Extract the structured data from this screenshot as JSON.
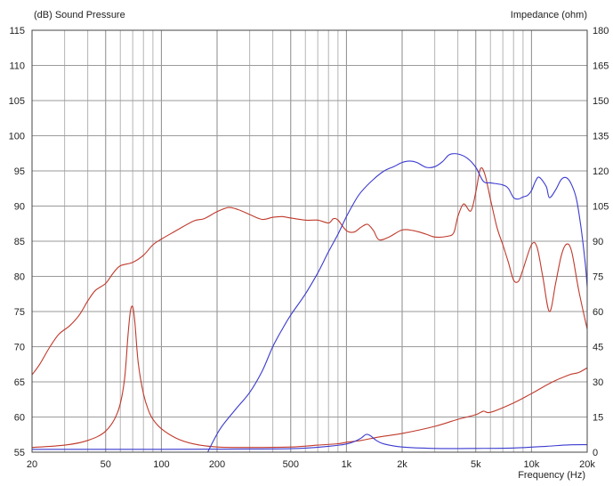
{
  "chart_data": {
    "type": "line",
    "left_axis": {
      "label": "(dB)  Sound Pressure",
      "min": 55,
      "max": 115,
      "ticks": [
        55,
        60,
        65,
        70,
        75,
        80,
        85,
        90,
        95,
        100,
        105,
        110,
        115
      ]
    },
    "right_axis": {
      "label": "Impedance  (ohm)",
      "min": 0,
      "max": 180,
      "ticks": [
        0,
        15,
        30,
        45,
        60,
        75,
        90,
        105,
        120,
        135,
        150,
        165,
        180
      ]
    },
    "x_axis": {
      "label": "Frequency  (Hz)",
      "scale": "log",
      "min": 20,
      "max": 20000,
      "ticks": [
        {
          "value": 20,
          "label": "20"
        },
        {
          "value": 50,
          "label": "50"
        },
        {
          "value": 100,
          "label": "100"
        },
        {
          "value": 200,
          "label": "200"
        },
        {
          "value": 500,
          "label": "500"
        },
        {
          "value": 1000,
          "label": "1k"
        },
        {
          "value": 2000,
          "label": "2k"
        },
        {
          "value": 5000,
          "label": "5k"
        },
        {
          "value": 10000,
          "label": "10k"
        },
        {
          "value": 20000,
          "label": "20k"
        }
      ]
    },
    "grid": true,
    "series": [
      {
        "color": "#c0392b",
        "axis": "left",
        "points": [
          [
            20,
            66
          ],
          [
            22,
            67.5
          ],
          [
            25,
            70
          ],
          [
            28,
            71.8
          ],
          [
            32,
            73
          ],
          [
            36,
            74.5
          ],
          [
            40,
            76.5
          ],
          [
            44,
            78
          ],
          [
            50,
            79
          ],
          [
            55,
            80.5
          ],
          [
            60,
            81.5
          ],
          [
            70,
            82
          ],
          [
            80,
            83
          ],
          [
            90,
            84.5
          ],
          [
            100,
            85.3
          ],
          [
            120,
            86.5
          ],
          [
            150,
            87.9
          ],
          [
            170,
            88.2
          ],
          [
            200,
            89.2
          ],
          [
            230,
            89.8
          ],
          [
            260,
            89.5
          ],
          [
            300,
            88.8
          ],
          [
            350,
            88.1
          ],
          [
            400,
            88.4
          ],
          [
            450,
            88.5
          ],
          [
            500,
            88.3
          ],
          [
            600,
            88
          ],
          [
            700,
            88
          ],
          [
            800,
            87.6
          ],
          [
            850,
            88.2
          ],
          [
            900,
            88
          ],
          [
            1000,
            86.5
          ],
          [
            1100,
            86.3
          ],
          [
            1200,
            87
          ],
          [
            1300,
            87.4
          ],
          [
            1400,
            86.5
          ],
          [
            1500,
            85.2
          ],
          [
            1700,
            85.6
          ],
          [
            2000,
            86.6
          ],
          [
            2300,
            86.5
          ],
          [
            2700,
            86
          ],
          [
            3000,
            85.6
          ],
          [
            3500,
            85.7
          ],
          [
            3800,
            86.2
          ],
          [
            4000,
            88.5
          ],
          [
            4300,
            90.3
          ],
          [
            4700,
            89.3
          ],
          [
            5000,
            92
          ],
          [
            5300,
            95.3
          ],
          [
            5600,
            94.5
          ],
          [
            6000,
            91
          ],
          [
            6500,
            87
          ],
          [
            7000,
            84.5
          ],
          [
            7500,
            82
          ],
          [
            8000,
            79.5
          ],
          [
            8500,
            79.3
          ],
          [
            9000,
            81
          ],
          [
            10000,
            84.5
          ],
          [
            10700,
            84.2
          ],
          [
            11500,
            80
          ],
          [
            12500,
            75
          ],
          [
            13500,
            79
          ],
          [
            14500,
            83
          ],
          [
            15500,
            84.6
          ],
          [
            16500,
            83.5
          ],
          [
            18000,
            78
          ],
          [
            20000,
            72.5
          ]
        ]
      },
      {
        "color": "#c0392b",
        "axis": "right",
        "points": [
          [
            20,
            2
          ],
          [
            30,
            3
          ],
          [
            40,
            5
          ],
          [
            50,
            9
          ],
          [
            58,
            17
          ],
          [
            63,
            30
          ],
          [
            66,
            50
          ],
          [
            68,
            60
          ],
          [
            70,
            62
          ],
          [
            72,
            55
          ],
          [
            75,
            38
          ],
          [
            80,
            25
          ],
          [
            85,
            18
          ],
          [
            90,
            14
          ],
          [
            100,
            10
          ],
          [
            120,
            6
          ],
          [
            150,
            3.5
          ],
          [
            200,
            2.2
          ],
          [
            300,
            2
          ],
          [
            500,
            2.2
          ],
          [
            700,
            3
          ],
          [
            900,
            3.6
          ],
          [
            1000,
            4.2
          ],
          [
            1200,
            5
          ],
          [
            1500,
            6.5
          ],
          [
            2000,
            8
          ],
          [
            3000,
            11
          ],
          [
            4000,
            14
          ],
          [
            5000,
            16
          ],
          [
            5500,
            17.5
          ],
          [
            6000,
            17
          ],
          [
            8000,
            21
          ],
          [
            10000,
            25
          ],
          [
            13000,
            30
          ],
          [
            16000,
            33
          ],
          [
            18000,
            34
          ],
          [
            20000,
            36
          ]
        ]
      },
      {
        "color": "#3a3ad0",
        "axis": "left",
        "points": [
          [
            178,
            55
          ],
          [
            190,
            56.5
          ],
          [
            210,
            58.5
          ],
          [
            250,
            61
          ],
          [
            300,
            63.5
          ],
          [
            350,
            66.5
          ],
          [
            400,
            70
          ],
          [
            450,
            72.5
          ],
          [
            500,
            74.5
          ],
          [
            600,
            77.5
          ],
          [
            700,
            80.5
          ],
          [
            800,
            83.5
          ],
          [
            900,
            86
          ],
          [
            1000,
            88.5
          ],
          [
            1100,
            90.5
          ],
          [
            1200,
            92
          ],
          [
            1400,
            93.8
          ],
          [
            1600,
            95
          ],
          [
            1800,
            95.6
          ],
          [
            2000,
            96.2
          ],
          [
            2200,
            96.4
          ],
          [
            2400,
            96.2
          ],
          [
            2700,
            95.5
          ],
          [
            3000,
            95.6
          ],
          [
            3300,
            96.3
          ],
          [
            3600,
            97.3
          ],
          [
            4000,
            97.4
          ],
          [
            4500,
            96.8
          ],
          [
            5000,
            95.5
          ],
          [
            5500,
            93.5
          ],
          [
            6000,
            93.3
          ],
          [
            7000,
            93
          ],
          [
            7500,
            92.5
          ],
          [
            8000,
            91.2
          ],
          [
            8500,
            91
          ],
          [
            9000,
            91.3
          ],
          [
            9500,
            91.5
          ],
          [
            10000,
            92.2
          ],
          [
            10500,
            93.5
          ],
          [
            11000,
            94.1
          ],
          [
            12000,
            92.8
          ],
          [
            12500,
            91.2
          ],
          [
            13500,
            92.3
          ],
          [
            14500,
            93.8
          ],
          [
            15500,
            94
          ],
          [
            16500,
            93
          ],
          [
            17500,
            91
          ],
          [
            18500,
            87
          ],
          [
            19500,
            82
          ],
          [
            20000,
            78.5
          ]
        ]
      },
      {
        "color": "#3a3ad0",
        "axis": "right",
        "points": [
          [
            20,
            1.2
          ],
          [
            100,
            1.2
          ],
          [
            200,
            1.3
          ],
          [
            500,
            1.5
          ],
          [
            800,
            2.5
          ],
          [
            1000,
            3.5
          ],
          [
            1100,
            4.5
          ],
          [
            1200,
            6
          ],
          [
            1280,
            7.6
          ],
          [
            1350,
            7
          ],
          [
            1450,
            5
          ],
          [
            1600,
            3.5
          ],
          [
            2000,
            2.2
          ],
          [
            3000,
            1.6
          ],
          [
            5000,
            1.6
          ],
          [
            8000,
            1.8
          ],
          [
            12000,
            2.5
          ],
          [
            16000,
            3.1
          ],
          [
            20000,
            3.2
          ]
        ]
      }
    ]
  }
}
